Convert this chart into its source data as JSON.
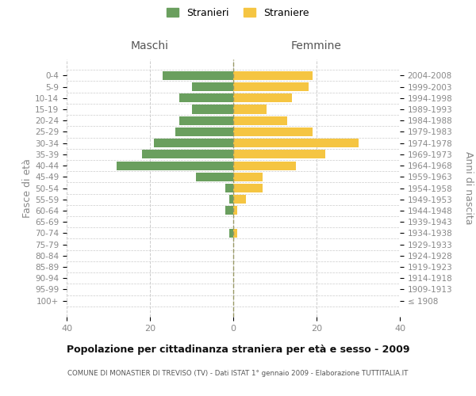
{
  "age_groups": [
    "100+",
    "95-99",
    "90-94",
    "85-89",
    "80-84",
    "75-79",
    "70-74",
    "65-69",
    "60-64",
    "55-59",
    "50-54",
    "45-49",
    "40-44",
    "35-39",
    "30-34",
    "25-29",
    "20-24",
    "15-19",
    "10-14",
    "5-9",
    "0-4"
  ],
  "birth_years": [
    "≤ 1908",
    "1909-1913",
    "1914-1918",
    "1919-1923",
    "1924-1928",
    "1929-1933",
    "1934-1938",
    "1939-1943",
    "1944-1948",
    "1949-1953",
    "1954-1958",
    "1959-1963",
    "1964-1968",
    "1969-1973",
    "1974-1978",
    "1979-1983",
    "1984-1988",
    "1989-1993",
    "1994-1998",
    "1999-2003",
    "2004-2008"
  ],
  "males": [
    0,
    0,
    0,
    0,
    0,
    0,
    1,
    0,
    2,
    1,
    2,
    9,
    28,
    22,
    19,
    14,
    13,
    10,
    13,
    10,
    17
  ],
  "females": [
    0,
    0,
    0,
    0,
    0,
    0,
    1,
    0,
    1,
    3,
    7,
    7,
    15,
    22,
    30,
    19,
    13,
    8,
    14,
    18,
    19
  ],
  "male_color": "#6a9f5e",
  "female_color": "#f5c542",
  "background_color": "#ffffff",
  "grid_color": "#cccccc",
  "title": "Popolazione per cittadinanza straniera per età e sesso - 2009",
  "subtitle": "COMUNE DI MONASTIER DI TREVISO (TV) - Dati ISTAT 1° gennaio 2009 - Elaborazione TUTTITALIA.IT",
  "xlabel_left": "Maschi",
  "xlabel_right": "Femmine",
  "ylabel_left": "Fasce di età",
  "ylabel_right": "Anni di nascita",
  "legend_male": "Stranieri",
  "legend_female": "Straniere",
  "xlim": 40,
  "tick_color": "#888888",
  "header_color": "#555555",
  "center_line_color": "#999966"
}
